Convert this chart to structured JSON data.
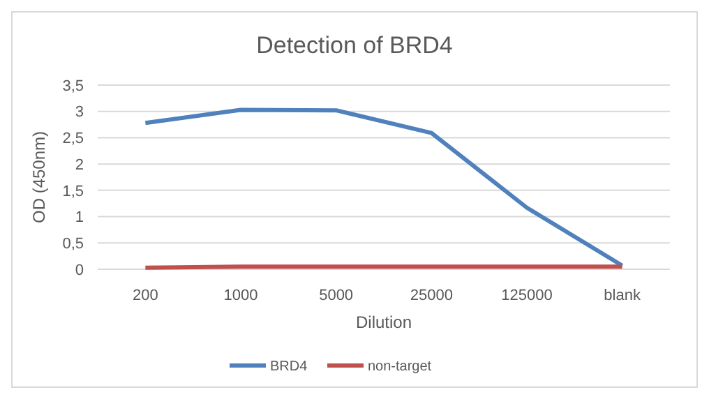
{
  "chart_data": {
    "type": "line",
    "title": "Detection of BRD4",
    "xlabel": "Dilution",
    "ylabel": "OD (450nm)",
    "categories": [
      "200",
      "1000",
      "5000",
      "25000",
      "125000",
      "blank"
    ],
    "series": [
      {
        "name": "BRD4",
        "color": "#4f81bd",
        "values": [
          2.78,
          3.03,
          3.02,
          2.59,
          1.17,
          0.07
        ]
      },
      {
        "name": "non-target",
        "color": "#c0504d",
        "values": [
          0.03,
          0.05,
          0.05,
          0.05,
          0.05,
          0.05
        ]
      }
    ],
    "ylim": [
      0,
      3.5
    ],
    "yticks": [
      0,
      {
        "value": 0.5,
        "label": "0,5"
      },
      1,
      {
        "value": 1.5,
        "label": "1,5"
      },
      2,
      {
        "value": 2.5,
        "label": "2,5"
      },
      3,
      {
        "value": 3.5,
        "label": "3,5"
      }
    ],
    "grid": "y",
    "legend": "bottom",
    "marker": "none",
    "line_style": "solid"
  }
}
